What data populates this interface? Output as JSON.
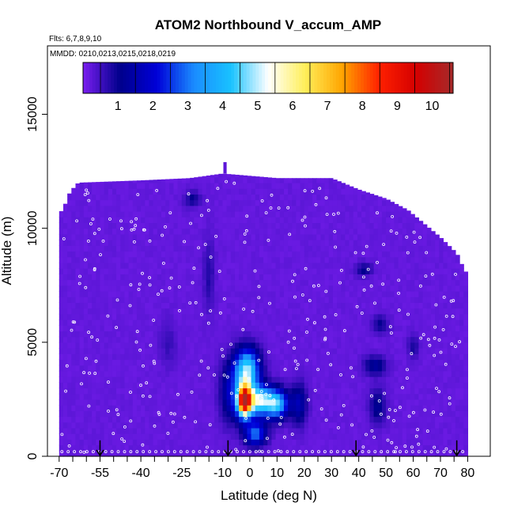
{
  "chart_data": {
    "type": "heatmap",
    "title": "ATOM2 Northbound V_accum_AMP",
    "subtitle_lines": [
      "Flts: 6,7,8,9,10",
      "MMDD: 0210,0213,0215,0218,0219"
    ],
    "xlabel": "Latitude (deg N)",
    "ylabel": "Altitude (m)",
    "xlim": [
      -70,
      82
    ],
    "ylim": [
      0,
      18000
    ],
    "x_ticks": [
      -70,
      -55,
      -40,
      -25,
      -10,
      0,
      10,
      20,
      30,
      40,
      50,
      60,
      70,
      80
    ],
    "x_minor_ticks": [
      -65,
      -60,
      -50,
      -45,
      -35,
      -30,
      -20,
      -15,
      -5,
      5,
      15,
      25,
      35,
      45,
      55,
      65,
      75
    ],
    "y_ticks": [
      0,
      5000,
      10000,
      15000
    ],
    "grid": false,
    "colorbar": {
      "placement": "top",
      "range": [
        0,
        10.6
      ],
      "ticks": [
        1,
        2,
        3,
        4,
        5,
        6,
        7,
        8,
        9,
        10
      ],
      "colors": [
        "#7a1ef0",
        "#00008b",
        "#0000d8",
        "#1a8cff",
        "#19c2ff",
        "#ffffff",
        "#ffef5a",
        "#ffa500",
        "#ff2000",
        "#d40000",
        "#a52a2a"
      ]
    },
    "background_value": 0.2,
    "data_extent_profile": [
      {
        "lat": -70,
        "top": 10600
      },
      {
        "lat": -68,
        "top": 11000
      },
      {
        "lat": -66,
        "top": 11600
      },
      {
        "lat": -63,
        "top": 12000
      },
      {
        "lat": -40,
        "top": 12100
      },
      {
        "lat": -22,
        "top": 12200
      },
      {
        "lat": -10,
        "top": 12400
      },
      {
        "lat": 10,
        "top": 12200
      },
      {
        "lat": 30,
        "top": 12200
      },
      {
        "lat": 40,
        "top": 11700
      },
      {
        "lat": 50,
        "top": 11300
      },
      {
        "lat": 58,
        "top": 10800
      },
      {
        "lat": 64,
        "top": 10200
      },
      {
        "lat": 70,
        "top": 9600
      },
      {
        "lat": 76,
        "top": 8900
      },
      {
        "lat": 79,
        "top": 8100
      }
    ],
    "features": [
      {
        "lat": -2,
        "alt": 2450,
        "value": 8.2,
        "sx": 2.5,
        "sy": 700
      },
      {
        "lat": -1,
        "alt": 3800,
        "value": 4.8,
        "sx": 4.5,
        "sy": 900
      },
      {
        "lat": 3,
        "alt": 2450,
        "value": 5.0,
        "sx": 6,
        "sy": 650
      },
      {
        "lat": 10,
        "alt": 2300,
        "value": 3.6,
        "sx": 4,
        "sy": 600
      },
      {
        "lat": 2,
        "alt": 1000,
        "value": 3.0,
        "sx": 4,
        "sy": 500
      },
      {
        "lat": -7,
        "alt": 2800,
        "value": 1.6,
        "sx": 4,
        "sy": 1300
      },
      {
        "lat": 18,
        "alt": 2300,
        "value": 1.6,
        "sx": 3,
        "sy": 900
      },
      {
        "lat": 46,
        "alt": 4000,
        "value": 1.4,
        "sx": 4,
        "sy": 400
      },
      {
        "lat": 47,
        "alt": 2200,
        "value": 1.2,
        "sx": 3,
        "sy": 800
      },
      {
        "lat": 48,
        "alt": 5800,
        "value": 1.0,
        "sx": 3,
        "sy": 400
      },
      {
        "lat": 42,
        "alt": 8200,
        "value": 1.1,
        "sx": 3,
        "sy": 300
      },
      {
        "lat": -21,
        "alt": 11300,
        "value": 1.0,
        "sx": 3,
        "sy": 350
      },
      {
        "lat": 60,
        "alt": 4800,
        "value": 0.9,
        "sx": 2,
        "sy": 500
      },
      {
        "lat": -15,
        "alt": 8000,
        "value": 0.8,
        "sx": 2,
        "sy": 1500
      },
      {
        "lat": -30,
        "alt": 5000,
        "value": 0.6,
        "sx": 3,
        "sy": 1000
      }
    ],
    "vertical_profile_markers": [
      -55,
      -8,
      39,
      76
    ],
    "sample_point_color": "#ffffff"
  }
}
